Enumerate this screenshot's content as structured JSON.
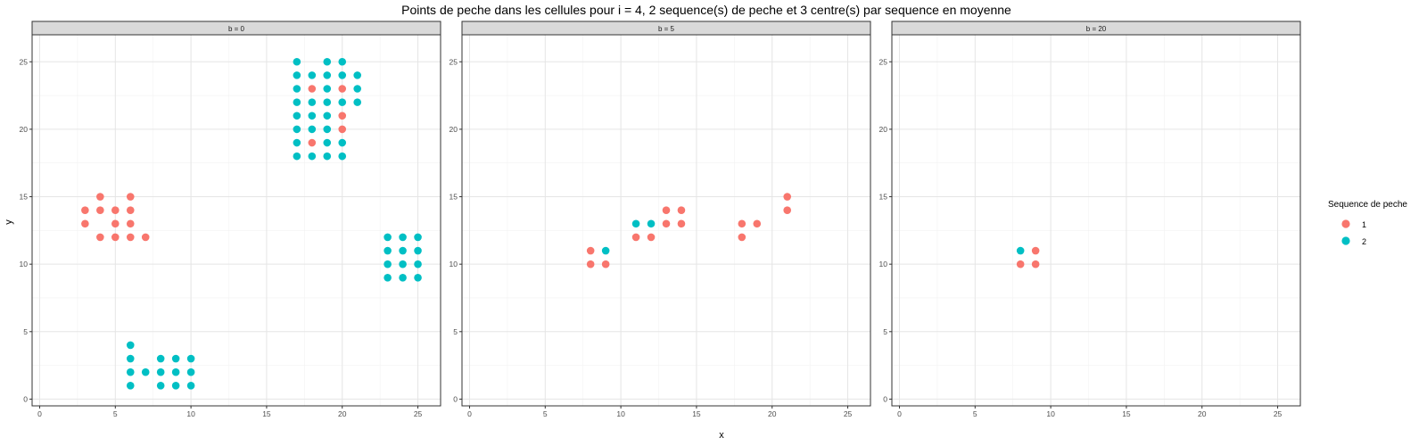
{
  "chart_data": {
    "type": "scatter",
    "title": "Points de peche dans les cellules pour i = 4, 2 sequence(s) de peche et 3 centre(s) par sequence en moyenne",
    "xlabel": "x",
    "ylabel": "y",
    "xlim": [
      -0.5,
      26.5
    ],
    "ylim": [
      -0.5,
      27
    ],
    "xticks": [
      0,
      5,
      10,
      15,
      20,
      25
    ],
    "yticks": [
      0,
      5,
      10,
      15,
      20,
      25
    ],
    "xtick_labels": [
      "0",
      "5",
      "10",
      "15",
      "20",
      "25"
    ],
    "ytick_labels": [
      "0",
      "5",
      "10",
      "15",
      "20",
      "25"
    ],
    "grid": true,
    "legend": {
      "title": "Sequence de peche",
      "position": "right",
      "entries": [
        {
          "label": "1",
          "color": "#f8766d"
        },
        {
          "label": "2",
          "color": "#00bfc4"
        }
      ]
    },
    "panels": [
      {
        "strip": "b = 0",
        "series": [
          {
            "name": "1",
            "points": [
              [
                3,
                13
              ],
              [
                3,
                14
              ],
              [
                4,
                12
              ],
              [
                4,
                14
              ],
              [
                4,
                15
              ],
              [
                5,
                12
              ],
              [
                5,
                13
              ],
              [
                5,
                14
              ],
              [
                6,
                12
              ],
              [
                6,
                13
              ],
              [
                6,
                14
              ],
              [
                6,
                15
              ],
              [
                7,
                12
              ],
              [
                18,
                19
              ],
              [
                18,
                23
              ],
              [
                20,
                20
              ],
              [
                20,
                21
              ],
              [
                20,
                23
              ]
            ]
          },
          {
            "name": "2",
            "points": [
              [
                6,
                1
              ],
              [
                6,
                2
              ],
              [
                6,
                3
              ],
              [
                6,
                4
              ],
              [
                7,
                2
              ],
              [
                8,
                1
              ],
              [
                8,
                2
              ],
              [
                8,
                3
              ],
              [
                9,
                1
              ],
              [
                9,
                2
              ],
              [
                9,
                3
              ],
              [
                10,
                1
              ],
              [
                10,
                2
              ],
              [
                10,
                3
              ],
              [
                17,
                18
              ],
              [
                17,
                19
              ],
              [
                17,
                20
              ],
              [
                17,
                21
              ],
              [
                17,
                22
              ],
              [
                17,
                23
              ],
              [
                17,
                24
              ],
              [
                17,
                25
              ],
              [
                18,
                18
              ],
              [
                18,
                20
              ],
              [
                18,
                21
              ],
              [
                18,
                22
              ],
              [
                18,
                24
              ],
              [
                19,
                18
              ],
              [
                19,
                19
              ],
              [
                19,
                20
              ],
              [
                19,
                21
              ],
              [
                19,
                22
              ],
              [
                19,
                23
              ],
              [
                19,
                24
              ],
              [
                19,
                25
              ],
              [
                20,
                18
              ],
              [
                20,
                19
              ],
              [
                20,
                22
              ],
              [
                20,
                24
              ],
              [
                20,
                25
              ],
              [
                21,
                22
              ],
              [
                21,
                23
              ],
              [
                21,
                24
              ],
              [
                23,
                9
              ],
              [
                23,
                10
              ],
              [
                23,
                11
              ],
              [
                23,
                12
              ],
              [
                24,
                9
              ],
              [
                24,
                10
              ],
              [
                24,
                11
              ],
              [
                24,
                12
              ],
              [
                25,
                9
              ],
              [
                25,
                10
              ],
              [
                25,
                11
              ],
              [
                25,
                12
              ]
            ]
          }
        ]
      },
      {
        "strip": "b = 5",
        "series": [
          {
            "name": "1",
            "points": [
              [
                8,
                10
              ],
              [
                8,
                11
              ],
              [
                9,
                10
              ],
              [
                11,
                12
              ],
              [
                12,
                12
              ],
              [
                13,
                13
              ],
              [
                13,
                14
              ],
              [
                14,
                13
              ],
              [
                14,
                14
              ],
              [
                18,
                12
              ],
              [
                18,
                13
              ],
              [
                19,
                13
              ],
              [
                21,
                14
              ],
              [
                21,
                15
              ]
            ]
          },
          {
            "name": "2",
            "points": [
              [
                9,
                11
              ],
              [
                11,
                13
              ],
              [
                12,
                13
              ]
            ]
          }
        ]
      },
      {
        "strip": "b = 20",
        "series": [
          {
            "name": "1",
            "points": [
              [
                8,
                10
              ],
              [
                9,
                10
              ],
              [
                9,
                11
              ]
            ]
          },
          {
            "name": "2",
            "points": [
              [
                8,
                11
              ]
            ]
          }
        ]
      }
    ]
  }
}
